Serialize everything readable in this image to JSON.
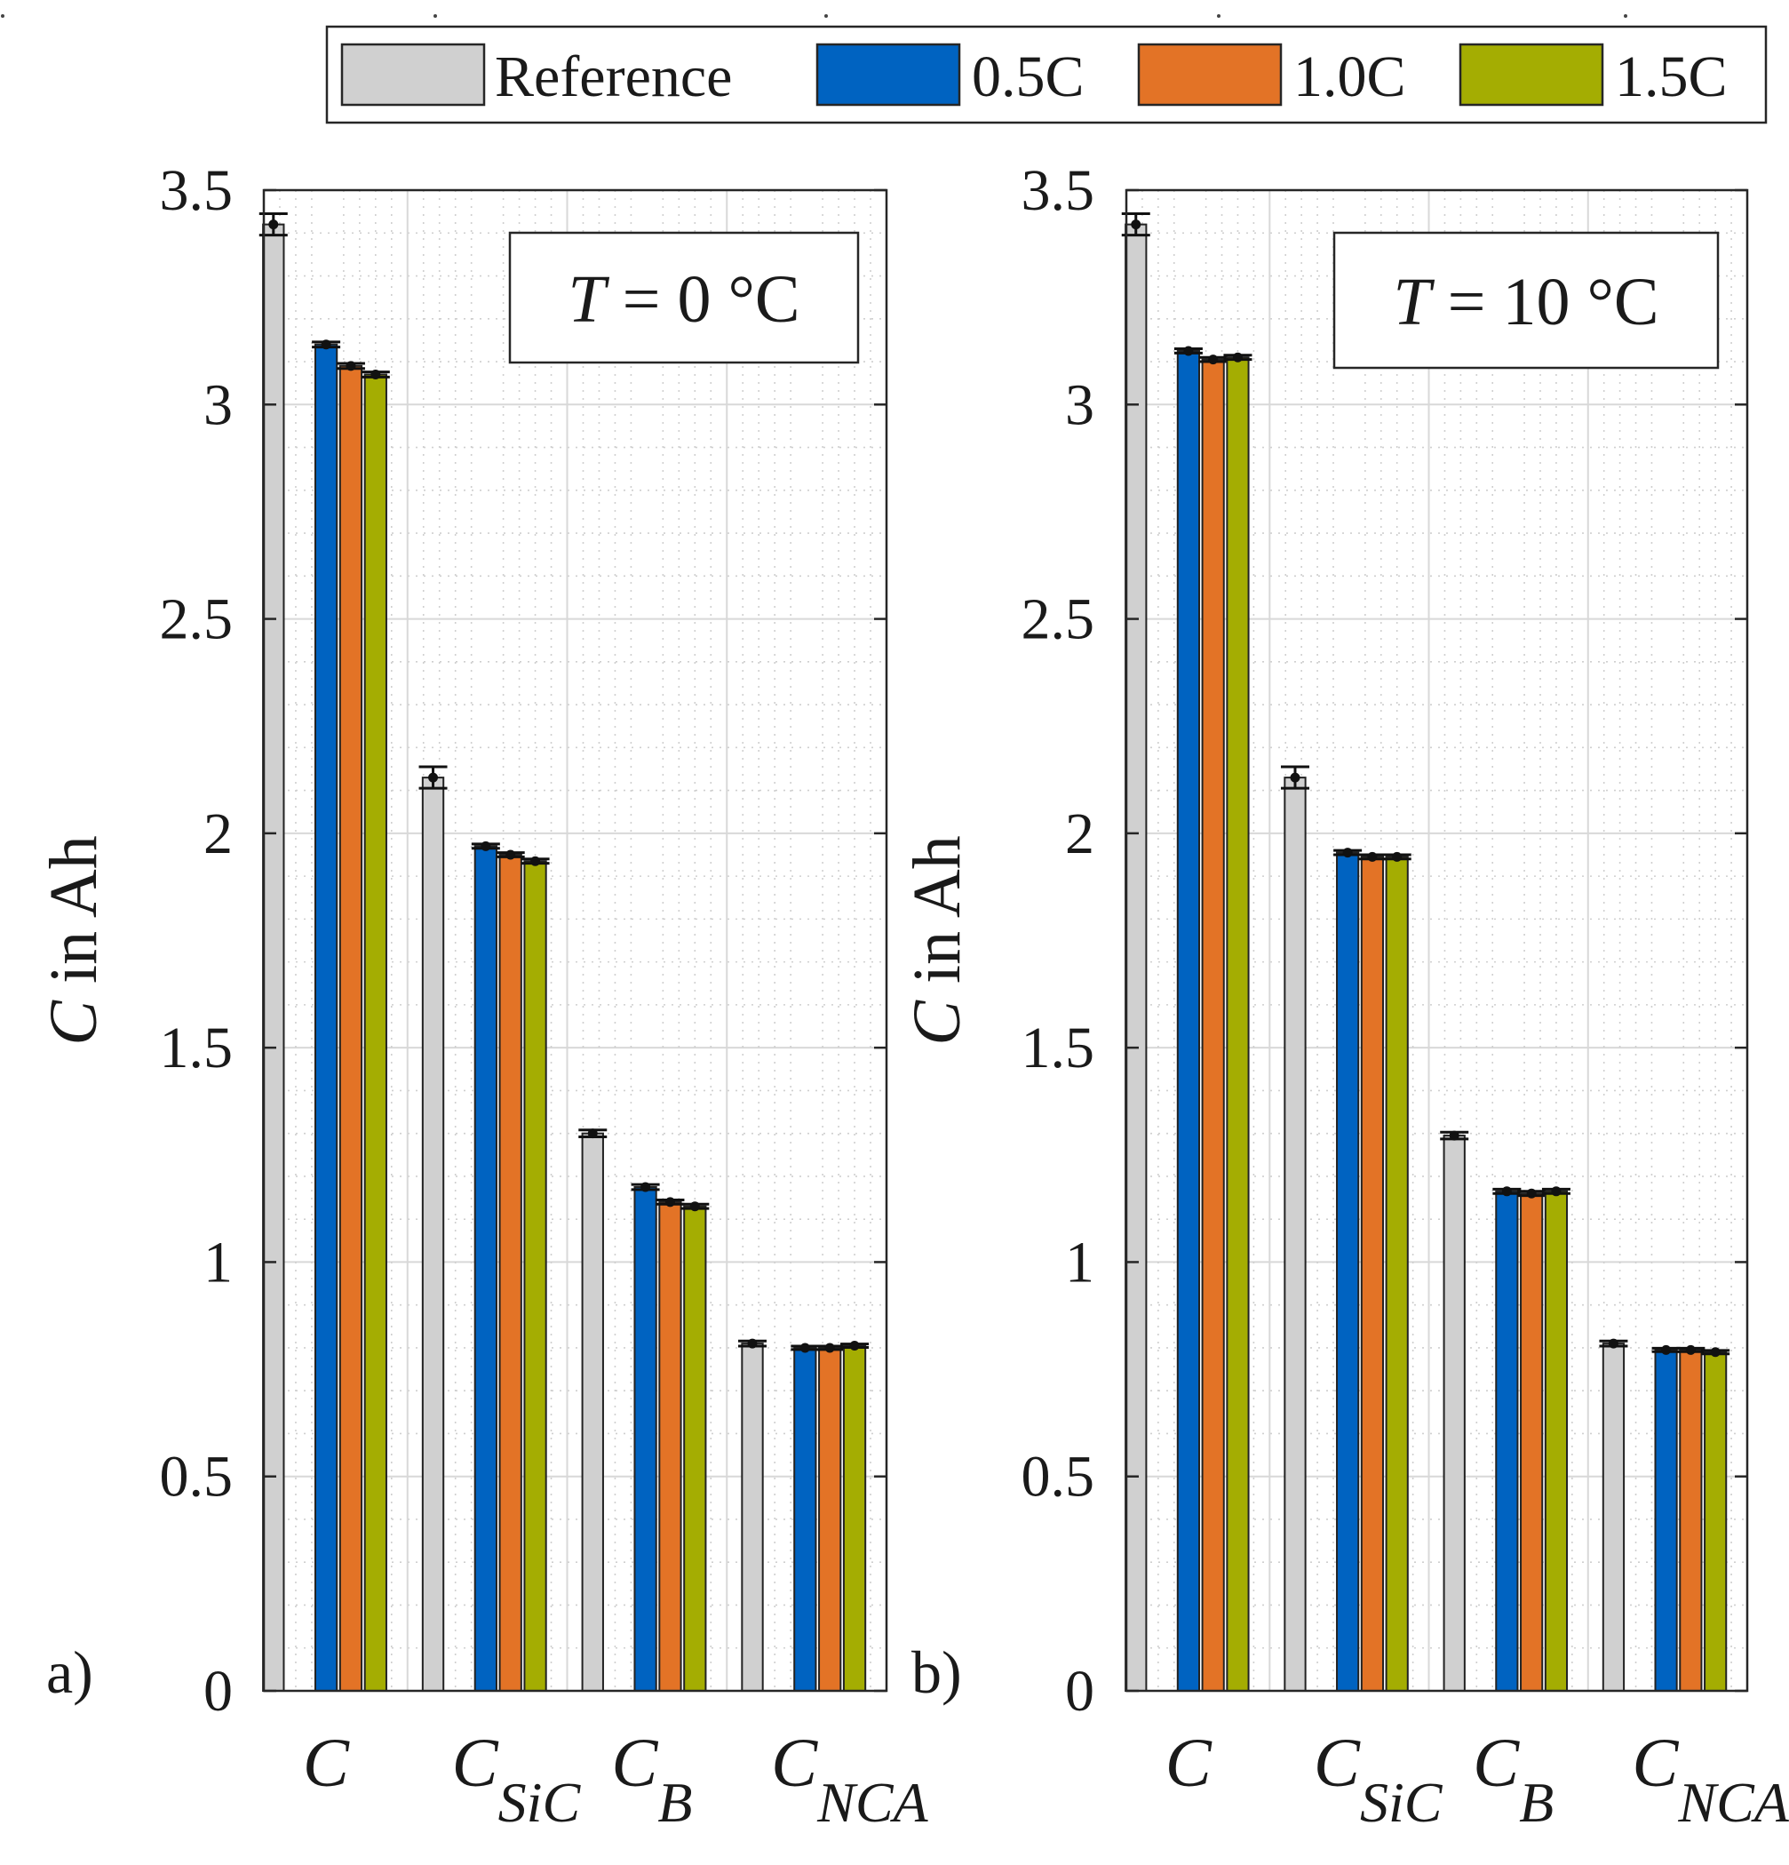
{
  "legend": {
    "entries": [
      {
        "name": "Reference",
        "color": "#d0d0d0"
      },
      {
        "name": "0.5C",
        "color": "#0063c1"
      },
      {
        "name": "1.0C",
        "color": "#e37326"
      },
      {
        "name": "1.5C",
        "color": "#a4ad02"
      }
    ]
  },
  "chart_data": [
    {
      "type": "bar",
      "panel_label": "a)",
      "annotation": {
        "italic": "T",
        "rest": " = 0 °C"
      },
      "ylabel": {
        "italic": "C",
        "rest": " in Ah"
      },
      "ylim": [
        0,
        3.5
      ],
      "yticks": [
        "0",
        "0.5",
        "1",
        "1.5",
        "2",
        "2.5",
        "3",
        "3.5"
      ],
      "categories": [
        {
          "main": "C",
          "sub": ""
        },
        {
          "main": "C",
          "sub": "SiC"
        },
        {
          "main": "C",
          "sub": "B"
        },
        {
          "main": "C",
          "sub": "NCA"
        }
      ],
      "series": [
        {
          "name": "Reference",
          "values": [
            3.42,
            2.13,
            1.3,
            0.81
          ],
          "err": [
            0.025,
            0.025,
            0.008,
            0.006
          ]
        },
        {
          "name": "0.5C",
          "values": [
            3.14,
            1.97,
            1.175,
            0.8
          ],
          "err": [
            0.006,
            0.005,
            0.006,
            0.004
          ]
        },
        {
          "name": "1.0C",
          "values": [
            3.09,
            1.95,
            1.14,
            0.8
          ],
          "err": [
            0.006,
            0.005,
            0.005,
            0.004
          ]
        },
        {
          "name": "1.5C",
          "values": [
            3.07,
            1.935,
            1.13,
            0.805
          ],
          "err": [
            0.006,
            0.005,
            0.005,
            0.004
          ]
        }
      ],
      "grid": true,
      "legend_position": "top"
    },
    {
      "type": "bar",
      "panel_label": "b)",
      "annotation": {
        "italic": "T",
        "rest": " = 10 °C"
      },
      "ylabel": {
        "italic": "C",
        "rest": " in Ah"
      },
      "ylim": [
        0,
        3.5
      ],
      "yticks": [
        "0",
        "0.5",
        "1",
        "1.5",
        "2",
        "2.5",
        "3",
        "3.5"
      ],
      "categories": [
        {
          "main": "C",
          "sub": ""
        },
        {
          "main": "C",
          "sub": "SiC"
        },
        {
          "main": "C",
          "sub": "B"
        },
        {
          "main": "C",
          "sub": "NCA"
        }
      ],
      "series": [
        {
          "name": "Reference",
          "values": [
            3.42,
            2.13,
            1.295,
            0.81
          ],
          "err": [
            0.025,
            0.025,
            0.008,
            0.006
          ]
        },
        {
          "name": "0.5C",
          "values": [
            3.125,
            1.955,
            1.165,
            0.795
          ],
          "err": [
            0.005,
            0.005,
            0.005,
            0.004
          ]
        },
        {
          "name": "1.0C",
          "values": [
            3.105,
            1.945,
            1.16,
            0.795
          ],
          "err": [
            0.005,
            0.005,
            0.005,
            0.004
          ]
        },
        {
          "name": "1.5C",
          "values": [
            3.11,
            1.945,
            1.165,
            0.79
          ],
          "err": [
            0.005,
            0.005,
            0.005,
            0.004
          ]
        }
      ],
      "grid": true,
      "legend_position": "top"
    }
  ]
}
